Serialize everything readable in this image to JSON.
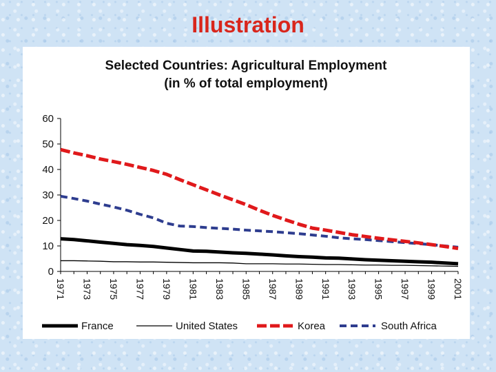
{
  "slide": {
    "title": "Illustration"
  },
  "chart_data": {
    "type": "line",
    "title": "Selected Countries: Agricultural Employment",
    "subtitle": "(in % of total employment)",
    "xlabel": "",
    "ylabel": "",
    "ylim": [
      0,
      60
    ],
    "yticks": [
      "0",
      "10",
      "20",
      "30",
      "40",
      "50",
      "60"
    ],
    "x": [
      1971,
      1972,
      1973,
      1974,
      1975,
      1976,
      1977,
      1978,
      1979,
      1980,
      1981,
      1982,
      1983,
      1984,
      1985,
      1986,
      1987,
      1988,
      1989,
      1990,
      1991,
      1992,
      1993,
      1994,
      1995,
      1996,
      1997,
      1998,
      1999,
      2000,
      2001
    ],
    "xtick_labels": [
      "1971",
      "1973",
      "1975",
      "1977",
      "1979",
      "1981",
      "1983",
      "1985",
      "1987",
      "1989",
      "1991",
      "1993",
      "1995",
      "1997",
      "1999",
      "2001"
    ],
    "legend_position": "bottom",
    "series": [
      {
        "name": "France",
        "color": "#000000",
        "style": "thick",
        "values": [
          12.8,
          12.5,
          12.0,
          11.5,
          11.0,
          10.5,
          10.2,
          9.8,
          9.2,
          8.6,
          8.0,
          7.9,
          7.6,
          7.3,
          7.1,
          6.8,
          6.5,
          6.1,
          5.8,
          5.6,
          5.3,
          5.2,
          4.9,
          4.6,
          4.4,
          4.2,
          4.0,
          3.8,
          3.6,
          3.3,
          3.0
        ]
      },
      {
        "name": "United States",
        "color": "#000000",
        "style": "thin",
        "values": [
          4.2,
          4.2,
          4.1,
          4.0,
          3.8,
          3.8,
          3.7,
          3.7,
          3.6,
          3.5,
          3.4,
          3.4,
          3.4,
          3.3,
          3.0,
          3.0,
          3.0,
          2.9,
          2.9,
          2.8,
          2.7,
          2.7,
          2.6,
          2.5,
          2.5,
          2.4,
          2.4,
          2.3,
          2.2,
          2.1,
          2.0
        ]
      },
      {
        "name": "Korea",
        "color": "#e0191b",
        "style": "dashed-thick",
        "values": [
          47.8,
          46.5,
          45.4,
          44.1,
          43.1,
          42.0,
          40.8,
          39.6,
          38.1,
          36.0,
          34.0,
          32.0,
          30.0,
          28.1,
          26.2,
          24.0,
          22.0,
          20.2,
          18.5,
          17.0,
          16.2,
          15.3,
          14.4,
          13.7,
          13.0,
          12.4,
          11.8,
          11.2,
          10.5,
          9.8,
          9.0
        ]
      },
      {
        "name": "South Africa",
        "color": "#2e3d8f",
        "style": "dashed",
        "values": [
          29.5,
          28.6,
          27.6,
          26.4,
          25.3,
          24.0,
          22.4,
          21.0,
          18.9,
          17.8,
          17.6,
          17.2,
          16.9,
          16.6,
          16.2,
          15.9,
          15.6,
          15.2,
          14.8,
          14.3,
          13.8,
          13.2,
          12.8,
          12.5,
          12.1,
          11.7,
          11.3,
          10.9,
          10.5,
          10.0,
          9.5
        ]
      }
    ]
  }
}
